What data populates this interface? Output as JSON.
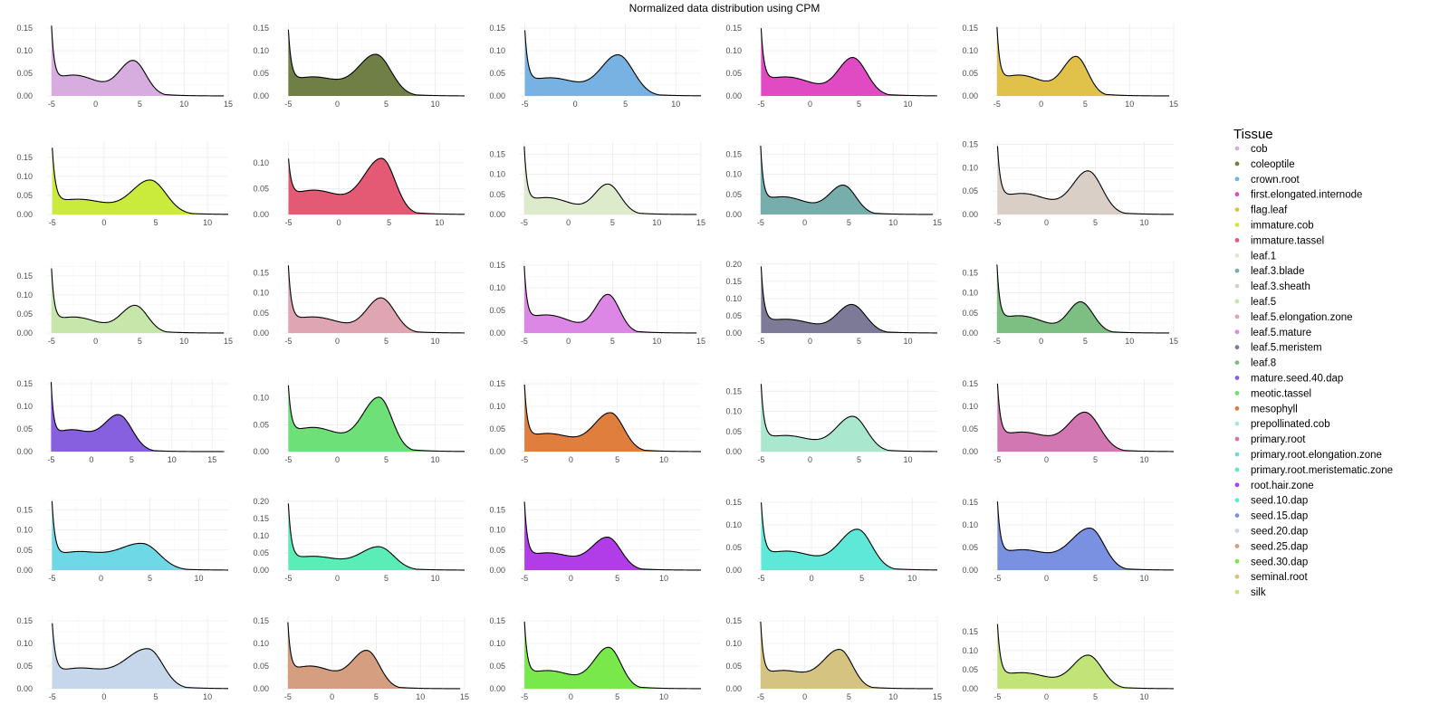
{
  "chart_data": {
    "type": "area",
    "title": "Normalized data distribution using CPM",
    "legend": {
      "title": "Tissue",
      "position": "right"
    },
    "grid": true,
    "panels": [
      {
        "name": "cob",
        "color": "#d7acdf",
        "xlim": [
          -5.5,
          15
        ],
        "xticks": [
          -5,
          0,
          5,
          10,
          15
        ],
        "ylim": [
          0,
          0.16
        ],
        "yticks": [
          0,
          0.05,
          0.1,
          0.15
        ],
        "y0": 0.158,
        "dip": 0.046,
        "peak": 0.105,
        "mu": 4.3,
        "sigL": 1.6,
        "sigR": 1.4,
        "xend": 14.5
      },
      {
        "name": "coleoptile",
        "color": "#6f7f45",
        "xlim": [
          -5.5,
          13
        ],
        "xticks": [
          -5,
          0,
          5,
          10
        ],
        "ylim": [
          0,
          0.16
        ],
        "yticks": [
          0,
          0.05,
          0.1,
          0.15
        ],
        "y0": 0.152,
        "dip": 0.042,
        "peak": 0.118,
        "mu": 4.0,
        "sigL": 1.8,
        "sigR": 1.5,
        "xend": 13
      },
      {
        "name": "crown.root",
        "color": "#78b2e2",
        "xlim": [
          -5.5,
          12.5
        ],
        "xticks": [
          -5,
          0,
          5,
          10
        ],
        "ylim": [
          0,
          0.16
        ],
        "yticks": [
          0,
          0.05,
          0.1,
          0.15
        ],
        "y0": 0.152,
        "dip": 0.04,
        "peak": 0.118,
        "mu": 4.3,
        "sigL": 1.7,
        "sigR": 1.5,
        "xend": 12.5
      },
      {
        "name": "first.elongated.internode",
        "color": "#e04bc4",
        "xlim": [
          -5.5,
          13
        ],
        "xticks": [
          -5,
          0,
          5,
          10
        ],
        "ylim": [
          0,
          0.16
        ],
        "yticks": [
          0,
          0.05,
          0.1,
          0.15
        ],
        "y0": 0.155,
        "dip": 0.042,
        "peak": 0.112,
        "mu": 4.4,
        "sigL": 1.5,
        "sigR": 1.4,
        "xend": 13
      },
      {
        "name": "flag.leaf",
        "color": "#e0c24a",
        "xlim": [
          -5.5,
          15
        ],
        "xticks": [
          -5,
          0,
          5,
          10,
          15
        ],
        "ylim": [
          0,
          0.16
        ],
        "yticks": [
          0,
          0.05,
          0.1,
          0.15
        ],
        "y0": 0.155,
        "dip": 0.046,
        "peak": 0.113,
        "mu": 4.0,
        "sigL": 1.5,
        "sigR": 1.3,
        "xend": 14.5
      },
      {
        "name": "immature.cob",
        "color": "#cbeb3c",
        "xlim": [
          -5.5,
          12
        ],
        "xticks": [
          -5,
          0,
          5,
          10
        ],
        "ylim": [
          0,
          0.19
        ],
        "yticks": [
          0,
          0.05,
          0.1,
          0.15
        ],
        "y0": 0.182,
        "dip": 0.04,
        "peak": 0.118,
        "mu": 4.5,
        "sigL": 1.8,
        "sigR": 1.5,
        "xend": 12
      },
      {
        "name": "immature.tassel",
        "color": "#e45a75",
        "xlim": [
          -5.5,
          12.5
        ],
        "xticks": [
          -5,
          0,
          5,
          10
        ],
        "ylim": [
          0,
          0.14
        ],
        "yticks": [
          0,
          0.05,
          0.1
        ],
        "y0": 0.11,
        "dip": 0.047,
        "peak": 0.135,
        "mu": 4.3,
        "sigL": 1.8,
        "sigR": 1.3,
        "xend": 12.5
      },
      {
        "name": "leaf.1",
        "color": "#deeacc",
        "xlim": [
          -5.5,
          15
        ],
        "xticks": [
          -5,
          0,
          5,
          10,
          15
        ],
        "ylim": [
          0,
          0.18
        ],
        "yticks": [
          0,
          0.05,
          0.1,
          0.15
        ],
        "y0": 0.175,
        "dip": 0.042,
        "peak": 0.103,
        "mu": 4.5,
        "sigL": 1.5,
        "sigR": 1.4,
        "xend": 14.5
      },
      {
        "name": "leaf.3.blade",
        "color": "#77adaa",
        "xlim": [
          -5.5,
          15
        ],
        "xticks": [
          -5,
          0,
          5,
          10,
          15
        ],
        "ylim": [
          0,
          0.18
        ],
        "yticks": [
          0,
          0.05,
          0.1,
          0.15
        ],
        "y0": 0.175,
        "dip": 0.044,
        "peak": 0.1,
        "mu": 4.4,
        "sigL": 1.6,
        "sigR": 1.4,
        "xend": 14.5
      },
      {
        "name": "leaf.3.sheath",
        "color": "#d9cfc6",
        "xlim": [
          -5.5,
          13
        ],
        "xticks": [
          -5,
          0,
          5,
          10
        ],
        "ylim": [
          0,
          0.155
        ],
        "yticks": [
          0,
          0.05,
          0.1,
          0.15
        ],
        "y0": 0.15,
        "dip": 0.045,
        "peak": 0.12,
        "mu": 4.3,
        "sigL": 1.6,
        "sigR": 1.4,
        "xend": 13
      },
      {
        "name": "leaf.5",
        "color": "#c7e6a9",
        "xlim": [
          -5.5,
          15
        ],
        "xticks": [
          -5,
          0,
          5,
          10,
          15
        ],
        "ylim": [
          0,
          0.19
        ],
        "yticks": [
          0,
          0.05,
          0.1,
          0.15
        ],
        "y0": 0.175,
        "dip": 0.042,
        "peak": 0.1,
        "mu": 4.5,
        "sigL": 1.6,
        "sigR": 1.4,
        "xend": 14.5
      },
      {
        "name": "leaf.5.elongation.zone",
        "color": "#dfa5b2",
        "xlim": [
          -5.5,
          13
        ],
        "xticks": [
          -5,
          0,
          5,
          10
        ],
        "ylim": [
          0,
          0.18
        ],
        "yticks": [
          0,
          0.05,
          0.1,
          0.15
        ],
        "y0": 0.175,
        "dip": 0.04,
        "peak": 0.115,
        "mu": 4.5,
        "sigL": 1.5,
        "sigR": 1.4,
        "xend": 13
      },
      {
        "name": "leaf.5.mature",
        "color": "#dc86e6",
        "xlim": [
          -5.5,
          15
        ],
        "xticks": [
          -5,
          0,
          5,
          10,
          15
        ],
        "ylim": [
          0,
          0.16
        ],
        "yticks": [
          0,
          0.05,
          0.1,
          0.15
        ],
        "y0": 0.155,
        "dip": 0.04,
        "peak": 0.113,
        "mu": 4.5,
        "sigL": 1.4,
        "sigR": 1.3,
        "xend": 14.5
      },
      {
        "name": "leaf.5.meristem",
        "color": "#7c7a96",
        "xlim": [
          -5.5,
          13
        ],
        "xticks": [
          -5,
          0,
          5,
          10
        ],
        "ylim": [
          0,
          0.21
        ],
        "yticks": [
          0,
          0.05,
          0.1,
          0.15,
          0.2
        ],
        "y0": 0.2,
        "dip": 0.04,
        "peak": 0.11,
        "mu": 4.3,
        "sigL": 1.5,
        "sigR": 1.4,
        "xend": 13
      },
      {
        "name": "leaf.8",
        "color": "#7dbe82",
        "xlim": [
          -5.5,
          15
        ],
        "xticks": [
          -5,
          0,
          5,
          10,
          15
        ],
        "ylim": [
          0,
          0.18
        ],
        "yticks": [
          0,
          0.05,
          0.1,
          0.15
        ],
        "y0": 0.175,
        "dip": 0.043,
        "peak": 0.105,
        "mu": 4.5,
        "sigL": 1.4,
        "sigR": 1.4,
        "xend": 14.5
      },
      {
        "name": "mature.seed.40.dap",
        "color": "#8760df",
        "xlim": [
          -5.5,
          17
        ],
        "xticks": [
          -5,
          0,
          5,
          10,
          15
        ],
        "ylim": [
          0,
          0.16
        ],
        "yticks": [
          0,
          0.05,
          0.1,
          0.15
        ],
        "y0": 0.155,
        "dip": 0.048,
        "peak": 0.105,
        "mu": 3.5,
        "sigL": 1.8,
        "sigR": 1.6,
        "xend": 16.5
      },
      {
        "name": "meotic.tassel",
        "color": "#6de077",
        "xlim": [
          -5.5,
          13
        ],
        "xticks": [
          -5,
          0,
          5,
          10
        ],
        "ylim": [
          0,
          0.135
        ],
        "yticks": [
          0,
          0.05,
          0.1
        ],
        "y0": 0.127,
        "dip": 0.045,
        "peak": 0.128,
        "mu": 4.3,
        "sigL": 1.7,
        "sigR": 1.3,
        "xend": 13
      },
      {
        "name": "mesophyll",
        "color": "#e07f3d",
        "xlim": [
          -5.5,
          14
        ],
        "xticks": [
          -5,
          0,
          5,
          10
        ],
        "ylim": [
          0,
          0.16
        ],
        "yticks": [
          0,
          0.05,
          0.1,
          0.15
        ],
        "y0": 0.155,
        "dip": 0.04,
        "peak": 0.113,
        "mu": 4.3,
        "sigL": 1.8,
        "sigR": 1.4,
        "xend": 14
      },
      {
        "name": "prepollinated.cob",
        "color": "#a9e8ce",
        "xlim": [
          -5.5,
          13
        ],
        "xticks": [
          -5,
          0,
          5,
          10
        ],
        "ylim": [
          0,
          0.18
        ],
        "yticks": [
          0,
          0.05,
          0.1,
          0.15
        ],
        "y0": 0.175,
        "dip": 0.04,
        "peak": 0.115,
        "mu": 4.4,
        "sigL": 1.7,
        "sigR": 1.4,
        "xend": 13
      },
      {
        "name": "primary.root",
        "color": "#d377b3",
        "xlim": [
          -5.5,
          13
        ],
        "xticks": [
          -5,
          0,
          5,
          10
        ],
        "ylim": [
          0,
          0.16
        ],
        "yticks": [
          0,
          0.05,
          0.1,
          0.15
        ],
        "y0": 0.155,
        "dip": 0.043,
        "peak": 0.113,
        "mu": 4.0,
        "sigL": 1.7,
        "sigR": 1.5,
        "xend": 13
      },
      {
        "name": "primary.root.elongation.zone",
        "color": "#6fd8e6",
        "xlim": [
          -5.5,
          13
        ],
        "xticks": [
          -5,
          0,
          5,
          10
        ],
        "ylim": [
          0,
          0.18
        ],
        "yticks": [
          0,
          0.05,
          0.1,
          0.15
        ],
        "y0": 0.175,
        "dip": 0.045,
        "peak": 0.093,
        "mu": 4.3,
        "sigL": 2.4,
        "sigR": 1.7,
        "xend": 13
      },
      {
        "name": "primary.root.meristematic.zone",
        "color": "#5aedb8",
        "xlim": [
          -5.5,
          13
        ],
        "xticks": [
          -5,
          0,
          5,
          10
        ],
        "ylim": [
          0,
          0.21
        ],
        "yticks": [
          0,
          0.05,
          0.1,
          0.15,
          0.2
        ],
        "y0": 0.2,
        "dip": 0.04,
        "peak": 0.095,
        "mu": 4.3,
        "sigL": 1.9,
        "sigR": 1.5,
        "xend": 13
      },
      {
        "name": "root.hair.zone",
        "color": "#b13de8",
        "xlim": [
          -5.5,
          14
        ],
        "xticks": [
          -5,
          0,
          5,
          10
        ],
        "ylim": [
          0,
          0.18
        ],
        "yticks": [
          0,
          0.05,
          0.1,
          0.15
        ],
        "y0": 0.175,
        "dip": 0.043,
        "peak": 0.108,
        "mu": 4.0,
        "sigL": 1.7,
        "sigR": 1.4,
        "xend": 14
      },
      {
        "name": "seed.10.dap",
        "color": "#5ee8d7",
        "xlim": [
          -5.5,
          12.5
        ],
        "xticks": [
          -5,
          0,
          5,
          10
        ],
        "ylim": [
          0,
          0.16
        ],
        "yticks": [
          0,
          0.05,
          0.1,
          0.15
        ],
        "y0": 0.155,
        "dip": 0.042,
        "peak": 0.118,
        "mu": 4.6,
        "sigL": 1.8,
        "sigR": 1.4,
        "xend": 12.5
      },
      {
        "name": "seed.15.dap",
        "color": "#7a90e0",
        "xlim": [
          -5.5,
          13
        ],
        "xticks": [
          -5,
          0,
          5,
          10
        ],
        "ylim": [
          0,
          0.16
        ],
        "yticks": [
          0,
          0.05,
          0.1,
          0.15
        ],
        "y0": 0.155,
        "dip": 0.045,
        "peak": 0.12,
        "mu": 4.5,
        "sigL": 2.0,
        "sigR": 1.4,
        "xend": 13
      },
      {
        "name": "seed.20.dap",
        "color": "#c6d7ec",
        "xlim": [
          -5.5,
          12
        ],
        "xticks": [
          -5,
          0,
          5,
          10
        ],
        "ylim": [
          0,
          0.16
        ],
        "yticks": [
          0,
          0.05,
          0.1,
          0.15
        ],
        "y0": 0.148,
        "dip": 0.045,
        "peak": 0.115,
        "mu": 4.3,
        "sigL": 2.2,
        "sigR": 1.4,
        "xend": 12
      },
      {
        "name": "seed.25.dap",
        "color": "#d59e80",
        "xlim": [
          -5.5,
          15
        ],
        "xticks": [
          -5,
          0,
          5,
          10,
          15
        ],
        "ylim": [
          0,
          0.16
        ],
        "yticks": [
          0,
          0.05,
          0.1,
          0.15
        ],
        "y0": 0.147,
        "dip": 0.05,
        "peak": 0.11,
        "mu": 4.0,
        "sigL": 1.7,
        "sigR": 1.4,
        "xend": 14.5
      },
      {
        "name": "seed.30.dap",
        "color": "#78e84a",
        "xlim": [
          -5.5,
          14
        ],
        "xticks": [
          -5,
          0,
          5,
          10
        ],
        "ylim": [
          0,
          0.16
        ],
        "yticks": [
          0,
          0.05,
          0.1,
          0.15
        ],
        "y0": 0.155,
        "dip": 0.04,
        "peak": 0.118,
        "mu": 4.1,
        "sigL": 1.6,
        "sigR": 1.3,
        "xend": 14
      },
      {
        "name": "seminal.root",
        "color": "#d5c382",
        "xlim": [
          -5.5,
          15
        ],
        "xticks": [
          -5,
          0,
          5,
          10,
          15
        ],
        "ylim": [
          0,
          0.16
        ],
        "yticks": [
          0,
          0.05,
          0.1,
          0.15
        ],
        "y0": 0.155,
        "dip": 0.04,
        "peak": 0.113,
        "mu": 4.0,
        "sigL": 1.9,
        "sigR": 1.4,
        "xend": 14.5
      },
      {
        "name": "silk",
        "color": "#c2e377",
        "xlim": [
          -5.5,
          13
        ],
        "xticks": [
          -5,
          0,
          5,
          10
        ],
        "ylim": [
          0,
          0.19
        ],
        "yticks": [
          0,
          0.05,
          0.1,
          0.15
        ],
        "y0": 0.175,
        "dip": 0.042,
        "peak": 0.115,
        "mu": 4.3,
        "sigL": 1.6,
        "sigR": 1.4,
        "xend": 13
      }
    ]
  }
}
